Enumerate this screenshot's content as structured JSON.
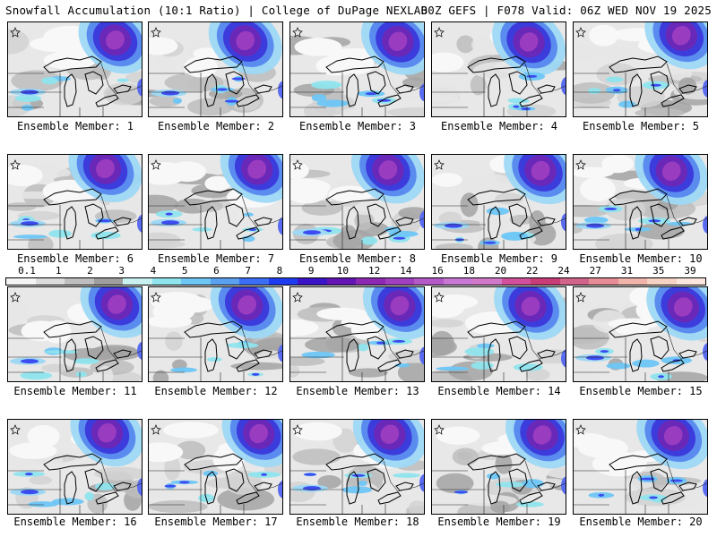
{
  "header": {
    "title": "Snowfall Accumulation (10:1 Ratio) | College of DuPage NEXLAB",
    "run_info": "00Z GEFS | F078 Valid: 06Z WED NOV 19 2025"
  },
  "members": [
    {
      "label": "Ensemble Member: 1"
    },
    {
      "label": "Ensemble Member: 2"
    },
    {
      "label": "Ensemble Member: 3"
    },
    {
      "label": "Ensemble Member: 4"
    },
    {
      "label": "Ensemble Member: 5"
    },
    {
      "label": "Ensemble Member: 6"
    },
    {
      "label": "Ensemble Member: 7"
    },
    {
      "label": "Ensemble Member: 8"
    },
    {
      "label": "Ensemble Member: 9"
    },
    {
      "label": "Ensemble Member: 10"
    },
    {
      "label": "Ensemble Member: 11"
    },
    {
      "label": "Ensemble Member: 12"
    },
    {
      "label": "Ensemble Member: 13"
    },
    {
      "label": "Ensemble Member: 14"
    },
    {
      "label": "Ensemble Member: 15"
    },
    {
      "label": "Ensemble Member: 16"
    },
    {
      "label": "Ensemble Member: 17"
    },
    {
      "label": "Ensemble Member: 18"
    },
    {
      "label": "Ensemble Member: 19"
    },
    {
      "label": "Ensemble Member: 20"
    }
  ],
  "scale": {
    "labels": [
      "0.1",
      "1",
      "2",
      "3",
      "4",
      "5",
      "6",
      "7",
      "8",
      "9",
      "10",
      "12",
      "14",
      "16",
      "18",
      "20",
      "22",
      "24",
      "27",
      "31",
      "35",
      "39"
    ],
    "colors": [
      "#f4f4f4",
      "#dcdcdc",
      "#bebebe",
      "#9e9e9e",
      "#c8f0f0",
      "#8fe4ee",
      "#6ec6f5",
      "#5aa0f0",
      "#3c6ef5",
      "#1e3cf0",
      "#3c14c8",
      "#6414b4",
      "#8c28b4",
      "#a040c0",
      "#b45ac8",
      "#c878d2",
      "#d278c8",
      "#d2509b",
      "#c83c78",
      "#d2648c",
      "#e68c96",
      "#f0b4aa",
      "#f5d2c3",
      "#fae6dc"
    ]
  }
}
